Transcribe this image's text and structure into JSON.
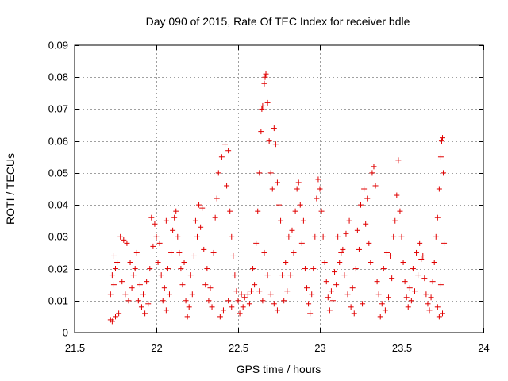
{
  "chart_data": {
    "type": "scatter",
    "title": "Day 090 of 2015, Rate Of TEC Index for receiver bdle",
    "xlabel": "GPS time / hours",
    "ylabel": "ROTI / TECUs",
    "xlim": [
      21.5,
      24
    ],
    "ylim": [
      0,
      0.09
    ],
    "xticks": [
      21.5,
      22,
      22.5,
      23,
      23.5,
      24
    ],
    "xtick_labels": [
      "21.5",
      "22",
      "22.5",
      "23",
      "23.5",
      "24"
    ],
    "yticks": [
      0,
      0.01,
      0.02,
      0.03,
      0.04,
      0.05,
      0.06,
      0.07,
      0.08,
      0.09
    ],
    "ytick_labels": [
      "0",
      "0.01",
      "0.02",
      "0.03",
      "0.04",
      "0.05",
      "0.06",
      "0.07",
      "0.08",
      "0.09"
    ],
    "grid": true,
    "marker": "+",
    "color": "#e00000",
    "series": [
      {
        "name": "ROTI",
        "points": [
          [
            21.72,
            0.004
          ],
          [
            21.73,
            0.0035
          ],
          [
            21.75,
            0.005
          ],
          [
            21.77,
            0.006
          ],
          [
            21.72,
            0.012
          ],
          [
            21.74,
            0.015
          ],
          [
            21.73,
            0.018
          ],
          [
            21.75,
            0.02
          ],
          [
            21.76,
            0.022
          ],
          [
            21.74,
            0.024
          ],
          [
            21.78,
            0.03
          ],
          [
            21.8,
            0.029
          ],
          [
            21.82,
            0.028
          ],
          [
            21.79,
            0.016
          ],
          [
            21.81,
            0.012
          ],
          [
            21.83,
            0.01
          ],
          [
            21.85,
            0.014
          ],
          [
            21.86,
            0.018
          ],
          [
            21.84,
            0.022
          ],
          [
            21.88,
            0.025
          ],
          [
            21.87,
            0.02
          ],
          [
            21.9,
            0.015
          ],
          [
            21.92,
            0.012
          ],
          [
            21.91,
            0.008
          ],
          [
            21.93,
            0.006
          ],
          [
            21.95,
            0.009
          ],
          [
            21.94,
            0.016
          ],
          [
            21.96,
            0.02
          ],
          [
            21.98,
            0.027
          ],
          [
            22.0,
            0.03
          ],
          [
            22.02,
            0.028
          ],
          [
            22.01,
            0.022
          ],
          [
            22.03,
            0.018
          ],
          [
            22.05,
            0.014
          ],
          [
            22.04,
            0.01
          ],
          [
            22.06,
            0.007
          ],
          [
            22.08,
            0.012
          ],
          [
            22.07,
            0.02
          ],
          [
            22.09,
            0.025
          ],
          [
            22.1,
            0.032
          ],
          [
            22.11,
            0.036
          ],
          [
            22.12,
            0.038
          ],
          [
            22.13,
            0.03
          ],
          [
            22.14,
            0.025
          ],
          [
            22.15,
            0.02
          ],
          [
            21.97,
            0.036
          ],
          [
            21.99,
            0.034
          ],
          [
            22.16,
            0.015
          ],
          [
            22.18,
            0.01
          ],
          [
            22.2,
            0.008
          ],
          [
            22.22,
            0.012
          ],
          [
            22.21,
            0.018
          ],
          [
            22.23,
            0.024
          ],
          [
            22.25,
            0.03
          ],
          [
            22.24,
            0.035
          ],
          [
            22.26,
            0.04
          ],
          [
            22.28,
            0.039
          ],
          [
            22.27,
            0.033
          ],
          [
            22.29,
            0.026
          ],
          [
            22.31,
            0.02
          ],
          [
            22.3,
            0.015
          ],
          [
            22.32,
            0.01
          ],
          [
            22.34,
            0.008
          ],
          [
            22.33,
            0.014
          ],
          [
            22.35,
            0.025
          ],
          [
            22.36,
            0.036
          ],
          [
            22.37,
            0.042
          ],
          [
            22.38,
            0.05
          ],
          [
            22.4,
            0.055
          ],
          [
            22.42,
            0.059
          ],
          [
            22.44,
            0.057
          ],
          [
            22.43,
            0.046
          ],
          [
            22.45,
            0.038
          ],
          [
            22.46,
            0.03
          ],
          [
            22.47,
            0.024
          ],
          [
            22.48,
            0.018
          ],
          [
            22.49,
            0.013
          ],
          [
            22.5,
            0.01
          ],
          [
            22.41,
            0.007
          ],
          [
            22.39,
            0.005
          ],
          [
            22.52,
            0.012
          ],
          [
            22.54,
            0.011
          ],
          [
            22.56,
            0.012
          ],
          [
            22.58,
            0.013
          ],
          [
            22.6,
            0.015
          ],
          [
            22.59,
            0.02
          ],
          [
            22.61,
            0.028
          ],
          [
            22.62,
            0.038
          ],
          [
            22.63,
            0.05
          ],
          [
            22.64,
            0.063
          ],
          [
            22.645,
            0.07
          ],
          [
            22.65,
            0.071
          ],
          [
            22.66,
            0.078
          ],
          [
            22.665,
            0.08
          ],
          [
            22.67,
            0.081
          ],
          [
            22.68,
            0.072
          ],
          [
            22.69,
            0.06
          ],
          [
            22.7,
            0.05
          ],
          [
            22.71,
            0.045
          ],
          [
            22.72,
            0.064
          ],
          [
            22.73,
            0.059
          ],
          [
            22.74,
            0.047
          ],
          [
            22.75,
            0.04
          ],
          [
            22.76,
            0.035
          ],
          [
            22.66,
            0.025
          ],
          [
            22.68,
            0.018
          ],
          [
            22.7,
            0.012
          ],
          [
            22.72,
            0.009
          ],
          [
            22.74,
            0.007
          ],
          [
            22.65,
            0.01
          ],
          [
            22.63,
            0.013
          ],
          [
            22.78,
            0.01
          ],
          [
            22.8,
            0.013
          ],
          [
            22.82,
            0.018
          ],
          [
            22.84,
            0.025
          ],
          [
            22.83,
            0.032
          ],
          [
            22.85,
            0.038
          ],
          [
            22.86,
            0.045
          ],
          [
            22.87,
            0.047
          ],
          [
            22.88,
            0.04
          ],
          [
            22.9,
            0.035
          ],
          [
            22.89,
            0.028
          ],
          [
            22.91,
            0.02
          ],
          [
            22.92,
            0.014
          ],
          [
            22.93,
            0.009
          ],
          [
            22.94,
            0.006
          ],
          [
            22.95,
            0.012
          ],
          [
            22.96,
            0.02
          ],
          [
            22.97,
            0.03
          ],
          [
            22.98,
            0.042
          ],
          [
            22.99,
            0.048
          ],
          [
            23.0,
            0.045
          ],
          [
            23.01,
            0.038
          ],
          [
            23.02,
            0.03
          ],
          [
            23.03,
            0.022
          ],
          [
            23.04,
            0.016
          ],
          [
            23.05,
            0.011
          ],
          [
            23.06,
            0.007
          ],
          [
            23.08,
            0.01
          ],
          [
            23.1,
            0.015
          ],
          [
            23.12,
            0.022
          ],
          [
            23.11,
            0.03
          ],
          [
            23.13,
            0.025
          ],
          [
            23.15,
            0.018
          ],
          [
            23.17,
            0.012
          ],
          [
            23.19,
            0.008
          ],
          [
            23.21,
            0.006
          ],
          [
            23.2,
            0.014
          ],
          [
            23.22,
            0.02
          ],
          [
            23.24,
            0.026
          ],
          [
            23.23,
            0.032
          ],
          [
            23.25,
            0.04
          ],
          [
            23.27,
            0.045
          ],
          [
            23.29,
            0.042
          ],
          [
            23.28,
            0.034
          ],
          [
            23.3,
            0.028
          ],
          [
            23.32,
            0.05
          ],
          [
            23.33,
            0.052
          ],
          [
            23.34,
            0.046
          ],
          [
            23.31,
            0.022
          ],
          [
            23.35,
            0.016
          ],
          [
            23.36,
            0.012
          ],
          [
            23.38,
            0.009
          ],
          [
            23.4,
            0.007
          ],
          [
            23.42,
            0.011
          ],
          [
            23.44,
            0.017
          ],
          [
            23.43,
            0.024
          ],
          [
            23.45,
            0.03
          ],
          [
            23.46,
            0.035
          ],
          [
            23.47,
            0.043
          ],
          [
            23.48,
            0.054
          ],
          [
            23.49,
            0.038
          ],
          [
            23.5,
            0.03
          ],
          [
            23.51,
            0.022
          ],
          [
            23.52,
            0.016
          ],
          [
            23.53,
            0.011
          ],
          [
            23.54,
            0.008
          ],
          [
            23.56,
            0.01
          ],
          [
            23.58,
            0.013
          ],
          [
            23.6,
            0.018
          ],
          [
            23.62,
            0.023
          ],
          [
            23.61,
            0.028
          ],
          [
            23.63,
            0.024
          ],
          [
            23.64,
            0.017
          ],
          [
            23.65,
            0.012
          ],
          [
            23.66,
            0.009
          ],
          [
            23.67,
            0.007
          ],
          [
            23.68,
            0.011
          ],
          [
            23.69,
            0.016
          ],
          [
            23.7,
            0.022
          ],
          [
            23.71,
            0.03
          ],
          [
            23.72,
            0.036
          ],
          [
            23.73,
            0.045
          ],
          [
            23.74,
            0.055
          ],
          [
            23.75,
            0.061
          ],
          [
            23.745,
            0.06
          ],
          [
            23.755,
            0.05
          ],
          [
            23.76,
            0.028
          ],
          [
            23.74,
            0.015
          ],
          [
            23.72,
            0.008
          ],
          [
            23.73,
            0.005
          ],
          [
            23.75,
            0.006
          ],
          [
            22.53,
            0.008
          ],
          [
            22.57,
            0.009
          ],
          [
            22.77,
            0.018
          ],
          [
            22.79,
            0.022
          ],
          [
            22.81,
            0.03
          ],
          [
            23.07,
            0.013
          ],
          [
            23.09,
            0.019
          ],
          [
            23.14,
            0.026
          ],
          [
            23.16,
            0.031
          ],
          [
            23.18,
            0.035
          ],
          [
            23.26,
            0.009
          ],
          [
            23.37,
            0.005
          ],
          [
            23.39,
            0.02
          ],
          [
            23.41,
            0.025
          ],
          [
            23.55,
            0.014
          ],
          [
            23.57,
            0.02
          ],
          [
            23.59,
            0.025
          ],
          [
            22.19,
            0.005
          ],
          [
            22.17,
            0.022
          ],
          [
            21.89,
            0.01
          ],
          [
            22.06,
            0.035
          ],
          [
            22.44,
            0.01
          ],
          [
            22.46,
            0.008
          ],
          [
            22.51,
            0.006
          ]
        ]
      }
    ]
  }
}
